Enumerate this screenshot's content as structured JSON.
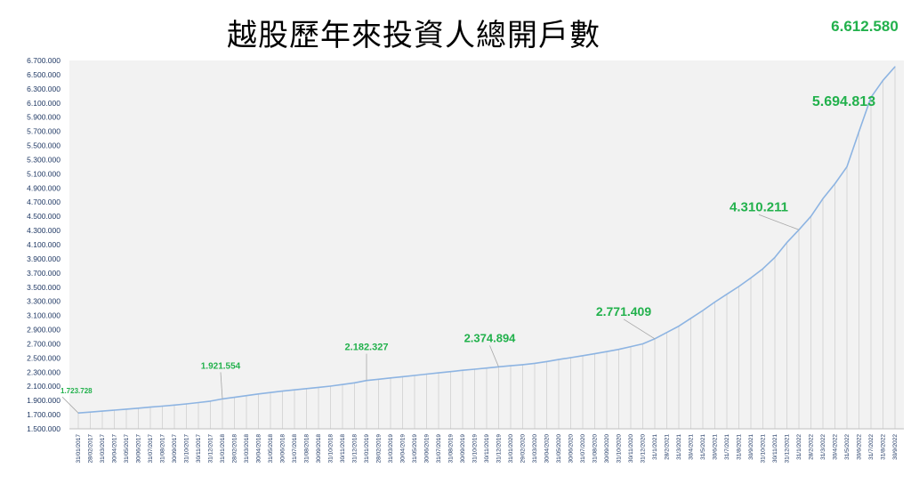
{
  "chart_data": {
    "type": "line",
    "title": "越股歷年來投資人總開戶數",
    "xlabel": "",
    "ylabel": "",
    "ylim": [
      1500000,
      6700000
    ],
    "yticks": [
      "1.500.000",
      "1.700.000",
      "1.900.000",
      "2.100.000",
      "2.300.000",
      "2.500.000",
      "2.700.000",
      "2.900.000",
      "3.100.000",
      "3.300.000",
      "3.500.000",
      "3.700.000",
      "3.900.000",
      "4.100.000",
      "4.300.000",
      "4.500.000",
      "4.700.000",
      "4.900.000",
      "5.100.000",
      "5.300.000",
      "5.500.000",
      "5.700.000",
      "5.900.000",
      "6.100.000",
      "6.300.000",
      "6.500.000",
      "6.700.000"
    ],
    "grid_vertical": true,
    "line_color": "#8db4e2",
    "label_color": "#22b14c",
    "plot_background": "#f2f2f2",
    "categories": [
      "31/01/2017",
      "28/02/2017",
      "31/03/2017",
      "30/04/2017",
      "31/05/2017",
      "30/06/2017",
      "31/07/2017",
      "31/08/2017",
      "30/09/2017",
      "31/10/2017",
      "30/11/2017",
      "31/12/2017",
      "31/01/2018",
      "28/02/2018",
      "31/03/2018",
      "30/04/2018",
      "31/05/2018",
      "30/06/2018",
      "31/07/2018",
      "31/08/2018",
      "30/09/2018",
      "31/10/2018",
      "30/11/2018",
      "31/12/2018",
      "31/01/2019",
      "28/02/2019",
      "31/03/2019",
      "30/04/2019",
      "31/05/2019",
      "30/06/2019",
      "31/07/2019",
      "31/08/2019",
      "30/09/2019",
      "31/10/2019",
      "30/11/2019",
      "31/12/2019",
      "31/01/2020",
      "29/02/2020",
      "31/03/2020",
      "30/04/2020",
      "31/05/2020",
      "30/06/2020",
      "31/07/2020",
      "31/08/2020",
      "30/09/2020",
      "31/10/2020",
      "30/11/2020",
      "31/12/2020",
      "31/1/2021",
      "28/2/2021",
      "31/3/2021",
      "30/4/2021",
      "31/5/2021",
      "30/6/2021",
      "31/7/2021",
      "31/8/2021",
      "30/9/2021",
      "31/10/2021",
      "30/11/2021",
      "31/12/2021",
      "31/1/2022",
      "28/2/2022",
      "31/3/2022",
      "30/4/2022",
      "31/5/2022",
      "30/6/2022",
      "31/7/2022",
      "31/8/2022",
      "30/9/2022"
    ],
    "values": [
      1723728,
      1736000,
      1750000,
      1764000,
      1778000,
      1792000,
      1806000,
      1820000,
      1835000,
      1852000,
      1870000,
      1890000,
      1921554,
      1945000,
      1968000,
      1992000,
      2012000,
      2032000,
      2050000,
      2068000,
      2085000,
      2103000,
      2125000,
      2150000,
      2182327,
      2200000,
      2218000,
      2236000,
      2254000,
      2272000,
      2290000,
      2308000,
      2326000,
      2342000,
      2358000,
      2374894,
      2390000,
      2405000,
      2425000,
      2450000,
      2478000,
      2505000,
      2532000,
      2560000,
      2590000,
      2622000,
      2660000,
      2700000,
      2771409,
      2860000,
      2950000,
      3060000,
      3170000,
      3290000,
      3400000,
      3510000,
      3630000,
      3760000,
      3920000,
      4130000,
      4310211,
      4500000,
      4750000,
      4960000,
      5200000,
      5694813,
      6180000,
      6420000,
      6612580
    ],
    "data_labels": [
      {
        "index": 0,
        "text": "1.723.728",
        "size": 8
      },
      {
        "index": 12,
        "text": "1.921.554",
        "size": 10
      },
      {
        "index": 24,
        "text": "2.182.327",
        "size": 11
      },
      {
        "index": 35,
        "text": "2.374.894",
        "size": 13
      },
      {
        "index": 48,
        "text": "2.771.409",
        "size": 14
      },
      {
        "index": 60,
        "text": "4.310.211",
        "size": 15
      },
      {
        "index": 65,
        "text": "5.694.813",
        "size": 16
      },
      {
        "index": 68,
        "text": "6.612.580",
        "size": 17
      }
    ]
  }
}
